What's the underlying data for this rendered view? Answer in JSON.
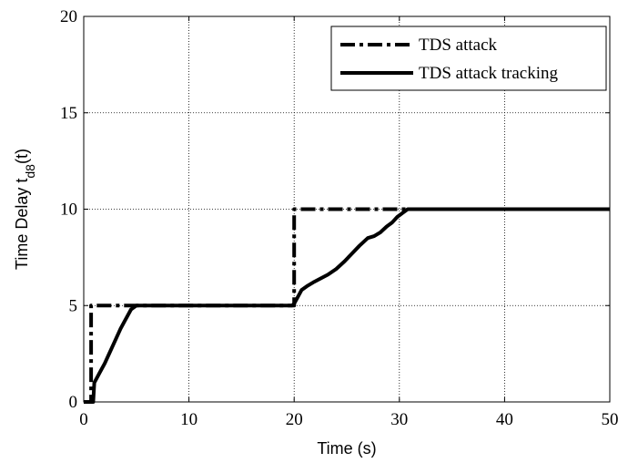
{
  "chart_data": {
    "type": "line",
    "title": "",
    "xlabel": "Time (s)",
    "ylabel_main": "Time Delay t",
    "ylabel_subscript": "d8",
    "ylabel_suffix": "(t)",
    "xlim": [
      0,
      50
    ],
    "ylim": [
      0,
      20
    ],
    "xticks": [
      0,
      10,
      20,
      30,
      40,
      50
    ],
    "yticks": [
      0,
      5,
      10,
      15,
      20
    ],
    "xtick_labels": [
      "0",
      "10",
      "20",
      "30",
      "40",
      "50"
    ],
    "ytick_labels": [
      "0",
      "5",
      "10",
      "15",
      "20"
    ],
    "grid": true,
    "legend_position": "top-right",
    "series": [
      {
        "name": "TDS attack",
        "style": "dash-dot",
        "color": "#000000",
        "x": [
          0,
          0.7,
          0.7,
          20,
          20,
          50
        ],
        "y": [
          0,
          0,
          5,
          5,
          10,
          10
        ]
      },
      {
        "name": "TDS attack tracking",
        "style": "solid",
        "color": "#000000",
        "x": [
          0,
          0.9,
          1.0,
          1.5,
          2.0,
          2.5,
          3.0,
          3.5,
          4.0,
          4.5,
          5.0,
          19.8,
          20.0,
          20.3,
          20.7,
          21.2,
          21.8,
          22.5,
          23.2,
          24.0,
          24.8,
          25.5,
          26.2,
          27.0,
          27.6,
          28.2,
          28.8,
          29.3,
          29.8,
          30.3,
          30.8,
          50
        ],
        "y": [
          0,
          0,
          1.0,
          1.5,
          2.0,
          2.6,
          3.2,
          3.8,
          4.3,
          4.8,
          5.0,
          5.0,
          5.1,
          5.4,
          5.8,
          6.0,
          6.2,
          6.4,
          6.6,
          6.9,
          7.3,
          7.7,
          8.1,
          8.5,
          8.6,
          8.8,
          9.1,
          9.3,
          9.6,
          9.8,
          10.0,
          10.0
        ]
      }
    ]
  }
}
